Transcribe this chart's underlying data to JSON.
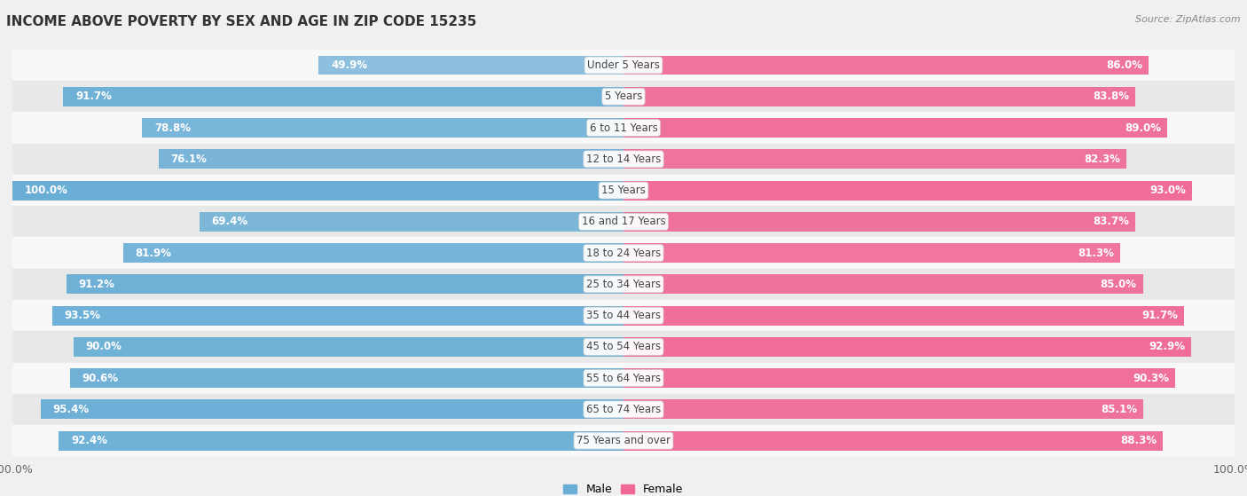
{
  "title": "INCOME ABOVE POVERTY BY SEX AND AGE IN ZIP CODE 15235",
  "source": "Source: ZipAtlas.com",
  "categories": [
    "Under 5 Years",
    "5 Years",
    "6 to 11 Years",
    "12 to 14 Years",
    "15 Years",
    "16 and 17 Years",
    "18 to 24 Years",
    "25 to 34 Years",
    "35 to 44 Years",
    "45 to 54 Years",
    "55 to 64 Years",
    "65 to 74 Years",
    "75 Years and over"
  ],
  "male_values": [
    49.9,
    91.7,
    78.8,
    76.1,
    100.0,
    69.4,
    81.9,
    91.2,
    93.5,
    90.0,
    90.6,
    95.4,
    92.4
  ],
  "female_values": [
    86.0,
    83.8,
    89.0,
    82.3,
    93.0,
    83.7,
    81.3,
    85.0,
    91.7,
    92.9,
    90.3,
    85.1,
    88.3
  ],
  "male_color_dark": "#6aaed6",
  "male_color_light": "#aed0e8",
  "female_color_dark": "#f06898",
  "female_color_light": "#f9b8cf",
  "male_label": "Male",
  "female_label": "Female",
  "bg_color": "#f0f0f0",
  "row_bg_light": "#f8f8f8",
  "row_bg_dark": "#e8e8e8",
  "title_fontsize": 11,
  "label_fontsize": 8.5,
  "bar_height": 0.62,
  "source_fontsize": 8,
  "x_tick_label_fontsize": 9,
  "legend_fontsize": 9
}
